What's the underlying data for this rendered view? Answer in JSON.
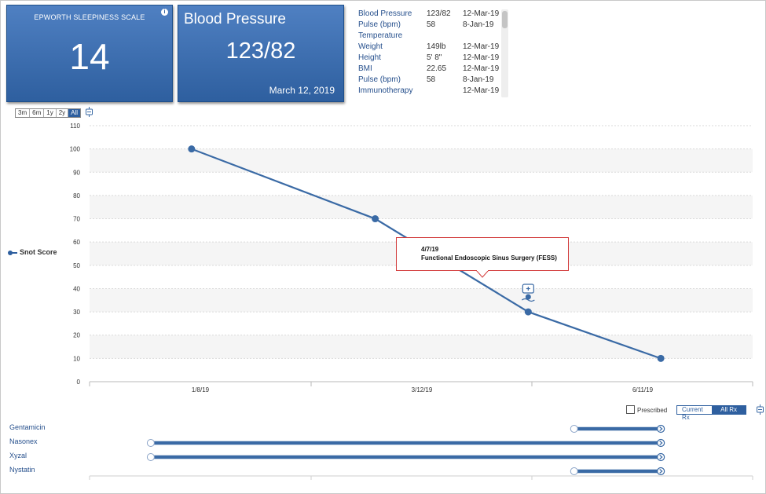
{
  "ess_card": {
    "title": "EPWORTH SLEEPINESS SCALE",
    "value": "14",
    "info_icon": "info-icon"
  },
  "bp_card": {
    "title": "Blood Pressure",
    "value": "123/82",
    "date": "March 12, 2019"
  },
  "vitals": [
    {
      "name": "Blood Pressure",
      "value": "123/82",
      "date": "12-Mar-19"
    },
    {
      "name": "Pulse (bpm)",
      "value": "58",
      "date": "8-Jan-19"
    },
    {
      "name": "Temperature",
      "value": "",
      "date": ""
    },
    {
      "name": "Weight",
      "value": "149lb",
      "date": "12-Mar-19"
    },
    {
      "name": "Height",
      "value": "5' 8\"",
      "date": "12-Mar-19"
    },
    {
      "name": "BMI",
      "value": "22.65",
      "date": "12-Mar-19"
    },
    {
      "name": "Pulse (bpm)",
      "value": "58",
      "date": "8-Jan-19"
    },
    {
      "name": "Immunotherapy",
      "value": "",
      "date": "12-Mar-19"
    }
  ],
  "range_buttons": [
    "3m",
    "6m",
    "1y",
    "2y",
    "All"
  ],
  "range_active": "All",
  "chart_data": {
    "type": "line",
    "title": "",
    "xlabel": "",
    "ylabel": "",
    "ylim": [
      0,
      110
    ],
    "y_ticks": [
      0,
      10,
      20,
      30,
      40,
      50,
      60,
      70,
      80,
      90,
      100,
      110
    ],
    "x_tick_labels": [
      "1/8/19",
      "3/12/19",
      "6/11/19"
    ],
    "series": [
      {
        "name": "Snot Score",
        "color": "#3a6aa5",
        "points": [
          {
            "x": "2018-11-26",
            "y": 100
          },
          {
            "x": "2019-02-06",
            "y": 70
          },
          {
            "x": "2019-04-07",
            "y": 30
          },
          {
            "x": "2019-05-29",
            "y": 10
          }
        ]
      }
    ],
    "annotations": [
      {
        "x": "2019-04-07",
        "date_text": "4/7/19",
        "text": "Functional Endoscopic Sinus Surgery (FESS)",
        "icon": "surgery-icon"
      }
    ],
    "grid": true,
    "legend_position": "left"
  },
  "rx": {
    "prescribed_label": "Prescribed",
    "current_label": "Current Rx",
    "all_label": "All Rx",
    "active": "All Rx",
    "medications": [
      {
        "name": "Gentamicin",
        "start": "2019-04-25",
        "end": "2019-05-29"
      },
      {
        "name": "Nasonex",
        "start": "2018-11-10",
        "end": "2019-05-29"
      },
      {
        "name": "Xyzal",
        "start": "2018-11-10",
        "end": "2019-05-29"
      },
      {
        "name": "Nystatin",
        "start": "2019-04-25",
        "end": "2019-05-29"
      }
    ]
  }
}
